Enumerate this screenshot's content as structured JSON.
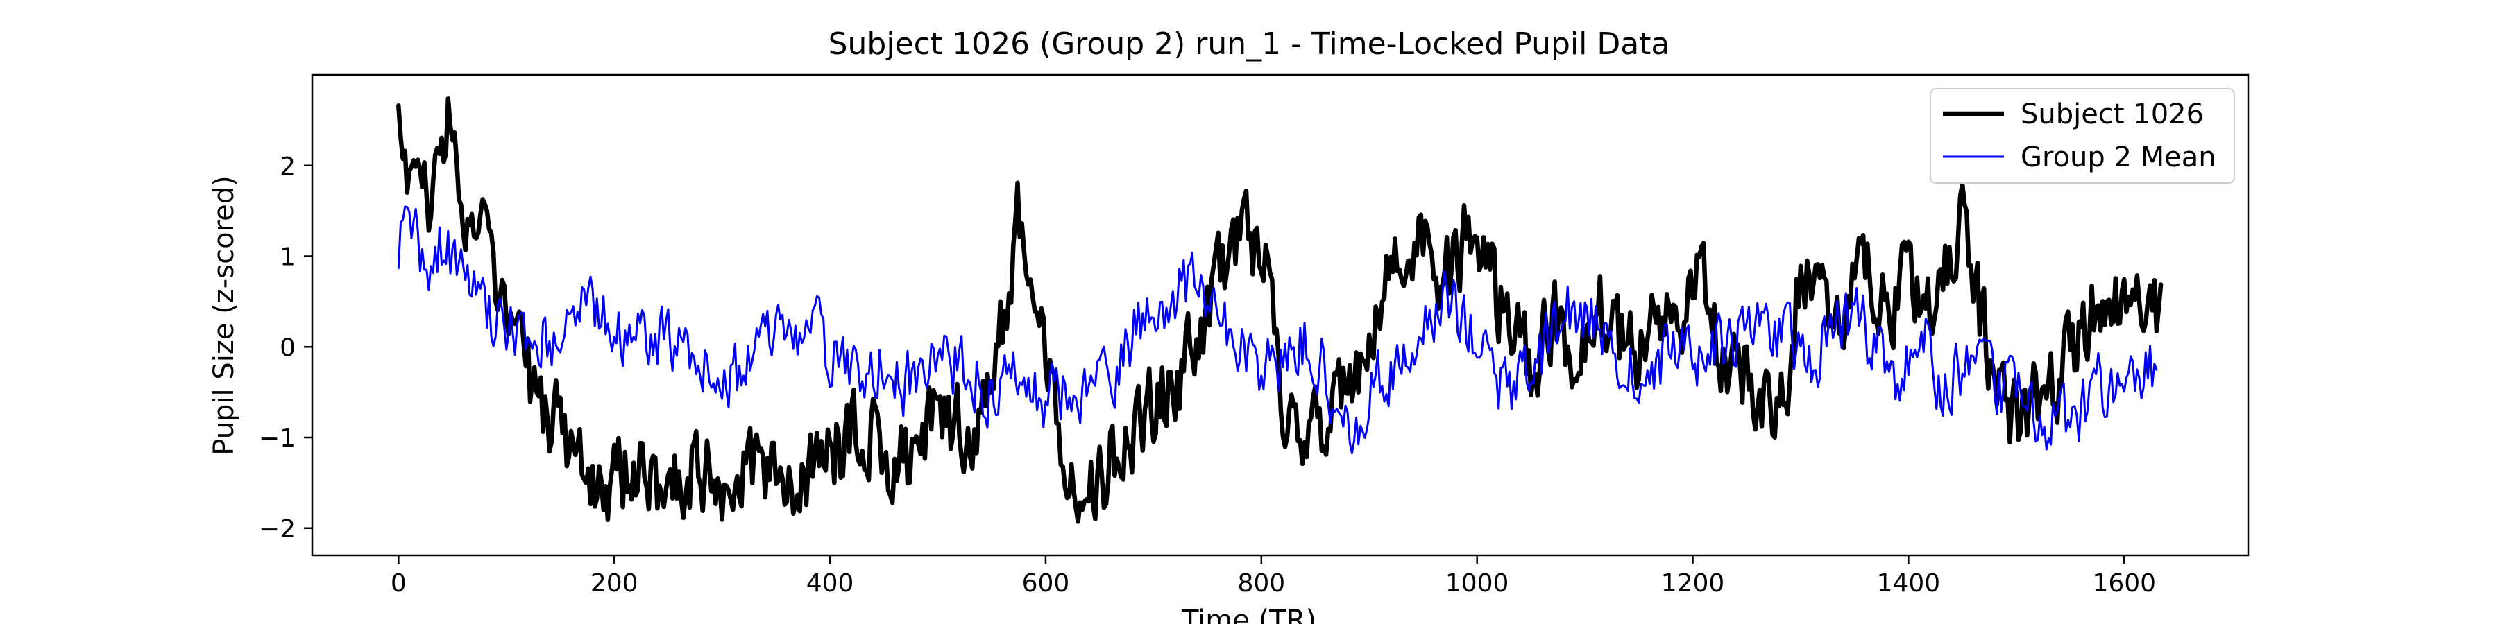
{
  "chart_data": {
    "type": "line",
    "title": "Subject 1026 (Group 2) run_1 - Time-Locked Pupil Data",
    "xlabel": "Time (TR)",
    "ylabel": "Pupil Size (z-scored)",
    "xlim": [
      -80,
      1715
    ],
    "ylim": [
      -2.3,
      3.0
    ],
    "xticks": [
      0,
      200,
      400,
      600,
      800,
      1000,
      1200,
      1400,
      1600
    ],
    "yticks": [
      -2,
      -1,
      0,
      1,
      2
    ],
    "grid": false,
    "legend": {
      "position": "upper-right"
    },
    "series": [
      {
        "name": "Subject 1026",
        "color": "#000000",
        "keypoints": [
          [
            0,
            2.55
          ],
          [
            10,
            1.8
          ],
          [
            20,
            2.1
          ],
          [
            30,
            1.3
          ],
          [
            40,
            2.2
          ],
          [
            45,
            2.75
          ],
          [
            55,
            1.7
          ],
          [
            65,
            1.3
          ],
          [
            80,
            1.2
          ],
          [
            90,
            0.6
          ],
          [
            100,
            0.2
          ],
          [
            110,
            0.4
          ],
          [
            120,
            -0.3
          ],
          [
            130,
            -0.7
          ],
          [
            150,
            -0.8
          ],
          [
            170,
            -1.4
          ],
          [
            190,
            -1.5
          ],
          [
            220,
            -1.4
          ],
          [
            250,
            -1.5
          ],
          [
            280,
            -1.3
          ],
          [
            300,
            -1.5
          ],
          [
            320,
            -1.3
          ],
          [
            340,
            -1.4
          ],
          [
            360,
            -1.6
          ],
          [
            380,
            -1.3
          ],
          [
            400,
            -1.2
          ],
          [
            420,
            -1.0
          ],
          [
            440,
            -0.9
          ],
          [
            460,
            -1.3
          ],
          [
            480,
            -1.2
          ],
          [
            500,
            -0.8
          ],
          [
            520,
            -0.9
          ],
          [
            540,
            -0.8
          ],
          [
            555,
            -0.2
          ],
          [
            565,
            0.6
          ],
          [
            575,
            1.5
          ],
          [
            590,
            0.5
          ],
          [
            605,
            -0.5
          ],
          [
            620,
            -1.1
          ],
          [
            640,
            -1.6
          ],
          [
            660,
            -1.3
          ],
          [
            680,
            -1.0
          ],
          [
            700,
            -0.6
          ],
          [
            720,
            -0.5
          ],
          [
            740,
            0.1
          ],
          [
            760,
            0.8
          ],
          [
            780,
            1.2
          ],
          [
            800,
            1.1
          ],
          [
            810,
            0.5
          ],
          [
            820,
            -0.8
          ],
          [
            840,
            -1.0
          ],
          [
            860,
            -0.8
          ],
          [
            880,
            -0.6
          ],
          [
            900,
            -0.2
          ],
          [
            915,
            1.0
          ],
          [
            930,
            0.9
          ],
          [
            950,
            1.2
          ],
          [
            970,
            0.7
          ],
          [
            990,
            1.2
          ],
          [
            1010,
            0.8
          ],
          [
            1030,
            0.2
          ],
          [
            1050,
            -0.3
          ],
          [
            1070,
            0.3
          ],
          [
            1090,
            -0.2
          ],
          [
            1110,
            0.5
          ],
          [
            1130,
            0.2
          ],
          [
            1150,
            -0.2
          ],
          [
            1170,
            0.5
          ],
          [
            1190,
            0.4
          ],
          [
            1210,
            0.8
          ],
          [
            1230,
            -0.4
          ],
          [
            1250,
            -0.2
          ],
          [
            1270,
            -0.6
          ],
          [
            1290,
            -0.2
          ],
          [
            1300,
            1.0
          ],
          [
            1320,
            0.6
          ],
          [
            1340,
            0.4
          ],
          [
            1360,
            0.9
          ],
          [
            1380,
            0.3
          ],
          [
            1400,
            0.8
          ],
          [
            1420,
            0.4
          ],
          [
            1440,
            1.0
          ],
          [
            1450,
            1.4
          ],
          [
            1460,
            0.7
          ],
          [
            1480,
            -0.3
          ],
          [
            1500,
            -0.9
          ],
          [
            1520,
            -0.5
          ],
          [
            1540,
            -0.3
          ],
          [
            1560,
            0.2
          ],
          [
            1580,
            0.4
          ],
          [
            1600,
            0.7
          ],
          [
            1620,
            0.3
          ],
          [
            1635,
            0.4
          ]
        ]
      },
      {
        "name": "Group 2 Mean",
        "color": "#0000ff",
        "keypoints": [
          [
            0,
            1.2
          ],
          [
            10,
            1.4
          ],
          [
            20,
            1.0
          ],
          [
            30,
            0.9
          ],
          [
            45,
            1.2
          ],
          [
            60,
            0.6
          ],
          [
            80,
            0.4
          ],
          [
            100,
            0.2
          ],
          [
            120,
            0.2
          ],
          [
            140,
            0.1
          ],
          [
            160,
            0.3
          ],
          [
            180,
            0.5
          ],
          [
            200,
            0.2
          ],
          [
            220,
            0.2
          ],
          [
            240,
            0.1
          ],
          [
            260,
            0.0
          ],
          [
            280,
            -0.2
          ],
          [
            300,
            -0.3
          ],
          [
            320,
            -0.3
          ],
          [
            335,
            0.4
          ],
          [
            350,
            0.2
          ],
          [
            370,
            0.1
          ],
          [
            390,
            0.1
          ],
          [
            410,
            -0.2
          ],
          [
            430,
            -0.3
          ],
          [
            450,
            -0.2
          ],
          [
            470,
            -0.4
          ],
          [
            490,
            -0.3
          ],
          [
            510,
            -0.2
          ],
          [
            530,
            -0.3
          ],
          [
            550,
            -0.5
          ],
          [
            570,
            -0.4
          ],
          [
            590,
            -0.6
          ],
          [
            610,
            -0.5
          ],
          [
            630,
            -0.4
          ],
          [
            650,
            -0.5
          ],
          [
            670,
            -0.2
          ],
          [
            690,
            0.3
          ],
          [
            710,
            0.5
          ],
          [
            730,
            0.7
          ],
          [
            750,
            0.4
          ],
          [
            770,
            0.1
          ],
          [
            790,
            -0.1
          ],
          [
            810,
            -0.3
          ],
          [
            830,
            0.1
          ],
          [
            850,
            0.0
          ],
          [
            870,
            -0.6
          ],
          [
            890,
            -0.8
          ],
          [
            910,
            -0.4
          ],
          [
            930,
            -0.1
          ],
          [
            950,
            0.3
          ],
          [
            970,
            0.6
          ],
          [
            990,
            0.2
          ],
          [
            1010,
            -0.3
          ],
          [
            1030,
            -0.5
          ],
          [
            1050,
            -0.3
          ],
          [
            1070,
            0.1
          ],
          [
            1090,
            0.5
          ],
          [
            1110,
            0.3
          ],
          [
            1130,
            -0.1
          ],
          [
            1150,
            -0.2
          ],
          [
            1170,
            -0.1
          ],
          [
            1190,
            0.1
          ],
          [
            1210,
            -0.1
          ],
          [
            1230,
            0.0
          ],
          [
            1250,
            0.2
          ],
          [
            1270,
            0.3
          ],
          [
            1290,
            0.0
          ],
          [
            1310,
            -0.2
          ],
          [
            1330,
            0.2
          ],
          [
            1350,
            0.4
          ],
          [
            1370,
            -0.1
          ],
          [
            1390,
            -0.3
          ],
          [
            1410,
            0.2
          ],
          [
            1430,
            -0.4
          ],
          [
            1450,
            -0.3
          ],
          [
            1470,
            -0.4
          ],
          [
            1490,
            -0.5
          ],
          [
            1510,
            -0.7
          ],
          [
            1530,
            -0.8
          ],
          [
            1550,
            -0.9
          ],
          [
            1570,
            -0.5
          ],
          [
            1590,
            -0.4
          ],
          [
            1610,
            -0.3
          ],
          [
            1630,
            -0.2
          ]
        ]
      }
    ]
  }
}
